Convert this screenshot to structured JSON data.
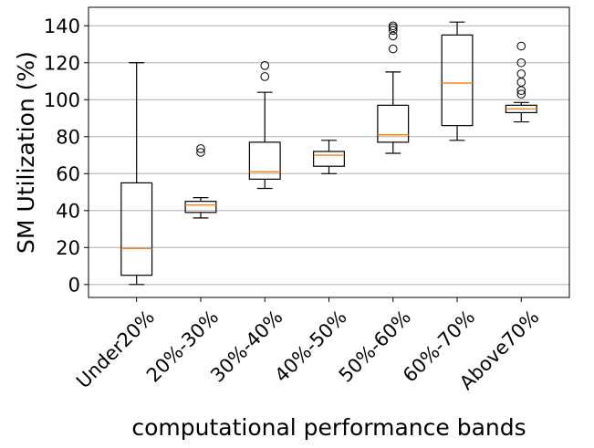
{
  "chart_data": {
    "type": "box",
    "title": "",
    "xlabel": "computational performance bands",
    "ylabel": "SM Utilization (%)",
    "ylim": [
      -7,
      150
    ],
    "yticks": [
      0,
      20,
      40,
      60,
      80,
      100,
      120,
      140
    ],
    "grid": "horizontal",
    "colors": {
      "box": "#000000",
      "median": "#ff7f0e",
      "grid": "#b0b0b0"
    },
    "categories": [
      "Under20%",
      "20%-30%",
      "30%-40%",
      "40%-50%",
      "50%-60%",
      "60%-70%",
      "Above70%"
    ],
    "boxes": [
      {
        "whisker_low": 0,
        "q1": 5,
        "median": 19.5,
        "q3": 55,
        "whisker_high": 120,
        "outliers": []
      },
      {
        "whisker_low": 36,
        "q1": 39,
        "median": 43,
        "q3": 45,
        "whisker_high": 47,
        "outliers": [
          71.5,
          73.5
        ]
      },
      {
        "whisker_low": 52,
        "q1": 57,
        "median": 61,
        "q3": 77,
        "whisker_high": 104,
        "outliers": [
          112.5,
          118.5
        ]
      },
      {
        "whisker_low": 60,
        "q1": 64,
        "median": 70,
        "q3": 72,
        "whisker_high": 78,
        "outliers": []
      },
      {
        "whisker_low": 71,
        "q1": 77,
        "median": 81,
        "q3": 97,
        "whisker_high": 115,
        "outliers": [
          127.5,
          134.5,
          137.5,
          139,
          140
        ]
      },
      {
        "whisker_low": 78,
        "q1": 86,
        "median": 109,
        "q3": 135,
        "whisker_high": 142,
        "outliers": []
      },
      {
        "whisker_low": 88,
        "q1": 93,
        "median": 95,
        "q3": 97,
        "whisker_high": 98.5,
        "outliers": [
          103,
          105,
          109.5,
          114,
          120,
          129
        ]
      }
    ]
  }
}
